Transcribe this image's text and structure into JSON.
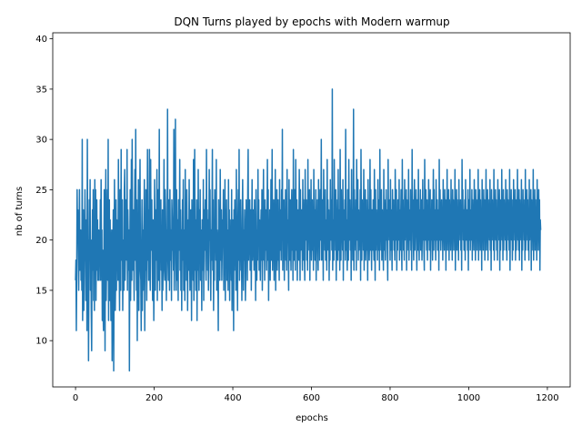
{
  "chart_data": {
    "type": "line",
    "title": "DQN Turns played by epochs with Modern warmup",
    "xlabel": "epochs",
    "ylabel": "nb of turns",
    "xlim": [
      -58,
      1258
    ],
    "ylim": [
      5.4,
      40.6
    ],
    "xticks": [
      0,
      200,
      400,
      600,
      800,
      1000,
      1200
    ],
    "yticks": [
      10,
      15,
      20,
      25,
      30,
      35,
      40
    ],
    "grid": false,
    "legend": "none",
    "series": [
      {
        "color": "#1f77b4",
        "x_start": 0,
        "x_step": 1,
        "values": [
          16,
          18,
          11,
          17,
          25,
          20,
          23,
          19,
          15,
          20,
          25,
          17,
          18,
          21,
          16,
          19,
          15,
          30,
          12,
          17,
          23,
          13,
          19,
          18,
          25,
          20,
          14,
          17,
          22,
          11,
          30,
          19,
          20,
          8,
          16,
          24,
          18,
          26,
          15,
          20,
          13,
          9,
          18,
          23,
          17,
          25,
          14,
          21,
          13,
          26,
          19,
          25,
          14,
          20,
          24,
          17,
          22,
          16,
          19,
          21,
          16,
          20,
          18,
          24,
          16,
          26,
          18,
          21,
          12,
          19,
          13,
          11,
          17,
          25,
          19,
          9,
          22,
          27,
          14,
          18,
          21,
          25,
          16,
          30,
          12,
          19,
          24,
          14,
          22,
          17,
          12,
          20,
          21,
          8,
          14,
          19,
          23,
          7,
          17,
          26,
          19,
          13,
          16,
          24,
          15,
          22,
          18,
          20,
          16,
          28,
          19,
          17,
          13,
          25,
          20,
          15,
          29,
          18,
          23,
          24,
          13,
          18,
          20,
          15,
          25,
          27,
          16,
          19,
          24,
          22,
          18,
          29,
          15,
          23,
          20,
          17,
          21,
          7,
          18,
          25,
          14,
          19,
          28,
          16,
          30,
          21,
          17,
          23,
          19,
          14,
          22,
          27,
          18,
          31,
          20,
          15,
          24,
          10,
          21,
          18,
          26,
          13,
          20,
          22,
          28,
          17,
          16,
          11,
          19,
          24,
          13,
          21,
          15,
          20,
          22,
          26,
          11,
          19,
          17,
          25,
          20,
          14,
          21,
          29,
          18,
          23,
          16,
          20,
          29,
          17,
          15,
          28,
          19,
          21,
          24,
          18,
          14,
          22,
          20,
          12,
          17,
          26,
          20,
          15,
          23,
          18,
          21,
          27,
          14,
          20,
          25,
          16,
          19,
          31,
          15,
          22,
          18,
          24,
          17,
          20,
          13,
          23,
          15,
          19,
          21,
          28,
          17,
          16,
          25,
          23,
          19,
          14,
          21,
          20,
          33,
          18,
          16,
          24,
          22,
          15,
          25,
          20,
          18,
          21,
          14,
          24,
          22,
          19,
          20,
          17,
          31,
          15,
          23,
          21,
          32,
          18,
          15,
          25,
          20,
          16,
          22,
          14,
          24,
          19,
          20,
          28,
          17,
          23,
          15,
          21,
          13,
          20,
          24,
          18,
          26,
          15,
          19,
          21,
          14,
          27,
          18,
          23,
          16,
          25,
          20,
          13,
          19,
          22,
          17,
          26,
          20,
          15,
          18,
          23,
          20,
          12,
          24,
          19,
          21,
          16,
          28,
          14,
          20,
          29,
          17,
          22,
          15,
          19,
          24,
          12,
          21,
          17,
          27,
          20,
          15,
          23,
          18,
          25,
          16,
          21,
          19,
          13,
          22,
          20,
          17,
          26,
          14,
          23,
          19,
          21,
          24,
          18,
          16,
          29,
          20,
          23,
          17,
          22,
          15,
          19,
          27,
          20,
          25,
          18,
          14,
          21,
          18,
          22,
          29,
          17,
          24,
          13,
          20,
          16,
          25,
          19,
          22,
          18,
          28,
          15,
          21,
          20,
          17,
          11,
          24,
          19,
          21,
          16,
          27,
          20,
          18,
          23,
          16,
          19,
          22,
          20,
          25,
          15,
          20,
          17,
          26,
          14,
          23,
          18,
          24,
          16,
          21,
          20,
          15,
          26,
          19,
          23,
          14,
          22,
          17,
          20,
          16,
          25,
          13,
          20,
          22,
          19,
          11,
          23,
          17,
          24,
          18,
          21,
          15,
          27,
          20,
          19,
          13,
          22,
          25,
          18,
          29,
          16,
          21,
          20,
          24,
          17,
          19,
          14,
          22,
          26,
          20,
          15,
          21,
          18,
          23,
          19,
          14,
          17,
          24,
          20,
          22,
          16,
          25,
          29,
          18,
          20,
          22,
          24,
          17,
          19,
          23,
          15,
          21,
          26,
          18,
          20,
          23,
          21,
          17,
          24,
          19,
          22,
          14,
          25,
          20,
          16,
          21,
          18,
          27,
          20,
          24,
          17,
          22,
          19,
          16,
          21,
          23,
          18,
          25,
          15,
          20,
          22,
          27,
          18,
          21,
          16,
          24,
          19,
          23,
          20,
          17,
          22,
          28,
          18,
          25,
          14,
          21,
          19,
          23,
          16,
          20,
          26,
          18,
          22,
          29,
          17,
          21,
          19,
          24,
          16,
          23,
          20,
          27,
          15,
          22,
          19,
          25,
          17,
          21,
          24,
          18,
          20,
          16,
          26,
          19,
          23,
          21,
          18,
          25,
          20,
          31,
          17,
          22,
          19,
          24,
          16,
          21,
          20,
          25,
          18,
          23,
          17,
          27,
          20,
          22,
          19,
          15,
          26,
          21,
          18,
          24,
          20,
          17,
          23,
          25,
          19,
          22,
          16,
          29,
          21,
          18,
          25,
          20,
          17,
          28,
          22,
          19,
          24,
          16,
          21,
          23,
          20,
          18,
          27,
          22,
          16,
          25,
          19,
          21,
          23,
          20,
          17,
          26,
          18,
          24,
          22,
          19,
          16,
          27,
          21,
          20,
          24,
          18,
          23,
          17,
          28,
          20,
          22,
          19,
          25,
          16,
          23,
          20,
          26,
          18,
          21,
          24,
          19,
          22,
          17,
          27,
          20,
          23,
          18,
          21,
          25,
          16,
          22,
          20,
          24,
          19,
          17,
          26,
          21,
          23,
          18,
          25,
          20,
          22,
          30,
          18,
          19,
          24,
          21,
          16,
          27,
          20,
          23,
          19,
          25,
          18,
          21,
          22,
          17,
          28,
          19,
          24,
          20,
          23,
          16,
          22,
          18,
          26,
          21,
          20,
          24,
          19,
          35,
          17,
          22,
          21,
          18,
          28,
          20,
          23,
          19,
          25,
          16,
          22,
          21,
          24,
          18,
          27,
          20,
          19,
          23,
          17,
          29,
          21,
          18,
          25,
          20,
          22,
          19,
          26,
          16,
          23,
          21,
          20,
          24,
          18,
          31,
          19,
          22,
          20,
          17,
          25,
          23,
          18,
          28,
          21,
          20,
          24,
          19,
          22,
          16,
          27,
          20,
          23,
          18,
          21,
          33,
          17,
          25,
          20,
          22,
          19,
          24,
          17,
          28,
          21,
          20,
          26,
          18,
          23,
          19,
          22,
          20,
          25,
          16,
          29,
          21,
          18,
          24,
          20,
          23,
          19,
          27,
          17,
          22,
          21,
          25,
          18,
          20,
          24,
          19,
          22,
          16,
          26,
          20,
          23,
          18,
          21,
          28,
          19,
          25,
          20,
          17,
          23,
          22,
          19,
          24,
          20,
          18,
          27,
          21,
          16,
          25,
          19,
          23,
          20,
          22,
          18,
          26,
          19,
          21,
          24,
          17,
          29,
          20,
          22,
          19,
          25,
          18,
          23,
          21,
          20,
          17,
          27,
          19,
          24,
          22,
          18,
          21,
          25,
          20,
          23,
          19,
          16,
          28,
          21,
          22,
          20,
          24,
          18,
          26,
          19,
          23,
          21,
          17,
          25,
          20,
          22,
          24,
          19,
          21,
          18,
          27,
          23,
          20,
          25,
          17,
          22,
          19,
          24,
          21,
          20,
          26,
          18,
          23,
          19,
          22,
          25,
          20,
          17,
          28,
          21,
          24,
          19,
          22,
          18,
          26,
          20,
          23,
          21,
          25,
          17,
          24,
          19,
          22,
          20,
          27,
          18,
          21,
          23,
          20,
          25,
          19,
          22,
          17,
          29,
          21,
          24,
          20,
          18,
          23,
          26,
          19,
          22,
          21,
          25,
          20,
          17,
          24,
          22,
          19,
          27,
          21,
          18,
          23,
          20,
          25,
          19,
          22,
          24,
          18,
          21,
          26,
          20,
          23,
          19,
          17,
          28,
          22,
          20,
          25,
          21,
          19,
          24,
          18,
          23,
          20,
          26,
          22,
          19,
          21,
          25,
          17,
          23,
          20,
          24,
          21,
          18,
          22,
          27,
          19,
          25,
          20,
          23,
          21,
          18,
          26,
          22,
          20,
          24,
          19,
          21,
          23,
          17,
          28,
          20,
          25,
          22,
          19,
          21,
          24,
          20,
          23,
          18,
          26,
          21,
          22,
          19,
          25,
          20,
          24,
          17,
          23,
          21,
          27,
          19,
          22,
          20,
          25,
          18,
          24,
          21,
          23,
          19,
          26,
          20,
          22,
          18,
          25,
          21,
          24,
          19,
          23,
          20,
          27,
          17,
          22,
          21,
          25,
          19,
          24,
          20,
          22,
          18,
          26,
          21,
          23,
          20,
          24,
          19,
          22,
          17,
          28,
          21,
          25,
          20,
          23,
          19,
          22,
          24,
          18,
          26,
          21,
          20,
          23,
          22,
          19,
          25,
          17,
          24,
          21,
          20,
          27,
          19,
          22,
          23,
          20,
          25,
          18,
          24,
          21,
          22,
          19,
          26,
          20,
          23,
          18,
          25,
          21,
          24,
          19,
          22,
          20,
          27,
          18,
          23,
          21,
          25,
          19,
          24,
          20,
          22,
          17,
          26,
          21,
          23,
          19,
          25,
          20,
          24,
          18,
          22,
          21,
          27,
          19,
          23,
          20,
          25,
          18,
          24,
          21,
          22,
          20,
          26,
          19,
          23,
          17,
          25,
          21,
          24,
          20,
          22,
          19,
          27,
          18,
          23,
          21,
          25,
          20,
          24,
          19,
          22,
          18,
          26,
          21,
          23,
          20,
          25,
          17,
          24,
          19,
          22,
          21,
          27,
          20,
          23,
          18,
          25,
          19,
          24,
          21,
          22,
          20,
          26,
          19,
          23,
          18,
          25,
          21,
          24,
          20,
          22,
          19,
          27,
          17,
          23,
          21,
          25,
          20,
          24,
          18,
          22,
          19,
          26,
          21,
          23,
          20,
          25,
          18,
          24,
          19,
          22,
          21,
          27,
          20,
          23,
          19,
          25,
          18,
          24,
          21,
          22,
          20,
          26,
          17,
          23,
          19,
          25,
          21,
          24,
          20,
          22,
          18,
          27,
          19,
          23,
          21,
          25,
          20,
          24,
          19,
          22,
          18,
          26,
          20,
          23,
          21,
          25,
          17,
          24,
          19,
          22,
          20,
          27,
          18,
          23,
          21,
          25,
          19,
          24,
          20,
          22,
          18,
          26,
          21,
          23,
          19,
          25,
          20,
          24,
          17,
          22,
          21
        ]
      }
    ]
  }
}
